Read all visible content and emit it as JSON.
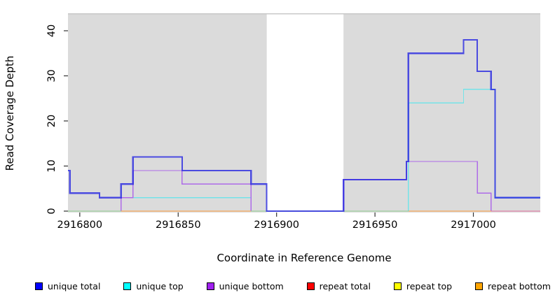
{
  "chart_data": {
    "type": "line",
    "subtype": "step-coverage",
    "title": "",
    "xlabel": "Coordinate in Reference Genome",
    "ylabel": "Read Coverage Depth",
    "xlim": [
      2916794,
      2917034
    ],
    "ylim": [
      0,
      42
    ],
    "x_ticks": [
      2916800,
      2916850,
      2916900,
      2916950,
      2917000
    ],
    "y_ticks": [
      0,
      10,
      20,
      30,
      40
    ],
    "grid": false,
    "plot_bg_color": "#DBDBDB",
    "plot_top_edge_color": "#C8C8C8",
    "gap_region": {
      "from": 2916895,
      "to": 2916934,
      "color": "#FFFFFF"
    },
    "series": [
      {
        "name": "unique top",
        "line_color": "#74E3E8",
        "line_width": 1.3,
        "steps": [
          [
            2916794,
            0
          ],
          [
            2916821,
            3
          ],
          [
            2916887,
            0
          ],
          [
            2916967,
            24
          ],
          [
            2916995,
            27
          ],
          [
            2917011,
            3
          ],
          [
            2917034,
            3
          ]
        ]
      },
      {
        "name": "unique bottom",
        "line_color": "#AE6BE8",
        "line_width": 1.3,
        "steps": [
          [
            2916794,
            0
          ],
          [
            2916821,
            3
          ],
          [
            2916827,
            9
          ],
          [
            2916852,
            6
          ],
          [
            2916887,
            0
          ],
          [
            2916934,
            7
          ],
          [
            2916966,
            11
          ],
          [
            2917002,
            4
          ],
          [
            2917009,
            0
          ],
          [
            2917034,
            0
          ]
        ]
      },
      {
        "name": "unique total",
        "line_color": "#2B2BE0",
        "line_width": 2.2,
        "opacity": 0.82,
        "steps": [
          [
            2916794,
            9
          ],
          [
            2916795,
            4
          ],
          [
            2916810,
            3
          ],
          [
            2916821,
            6
          ],
          [
            2916827,
            12
          ],
          [
            2916852,
            9
          ],
          [
            2916887,
            6
          ],
          [
            2916895,
            0
          ],
          [
            2916934,
            7
          ],
          [
            2916966,
            11
          ],
          [
            2916967,
            35
          ],
          [
            2916995,
            38
          ],
          [
            2917002,
            31
          ],
          [
            2917009,
            27
          ],
          [
            2917011,
            3
          ],
          [
            2917034,
            3
          ]
        ]
      }
    ],
    "baseline_segments": [
      {
        "from": 2916794,
        "to": 2916821,
        "color": "#8FCE8F"
      },
      {
        "from": 2916821,
        "to": 2916887,
        "color": "#FF9E3D"
      },
      {
        "from": 2916887,
        "to": 2916967,
        "color": "#8FCE8F"
      },
      {
        "from": 2916967,
        "to": 2917009,
        "color": "#FF9E3D"
      },
      {
        "from": 2917009,
        "to": 2917034,
        "color": "#E06C9C"
      }
    ],
    "legend": {
      "position": "bottom",
      "entries": [
        {
          "label": "unique total",
          "color": "#0000FF"
        },
        {
          "label": "unique top",
          "color": "#00FFFF"
        },
        {
          "label": "unique bottom",
          "color": "#A020F0"
        },
        {
          "label": "repeat total",
          "color": "#FF0000"
        },
        {
          "label": "repeat top",
          "color": "#FFFF00"
        },
        {
          "label": "repeat bottom",
          "color": "#FFA500"
        }
      ]
    }
  }
}
